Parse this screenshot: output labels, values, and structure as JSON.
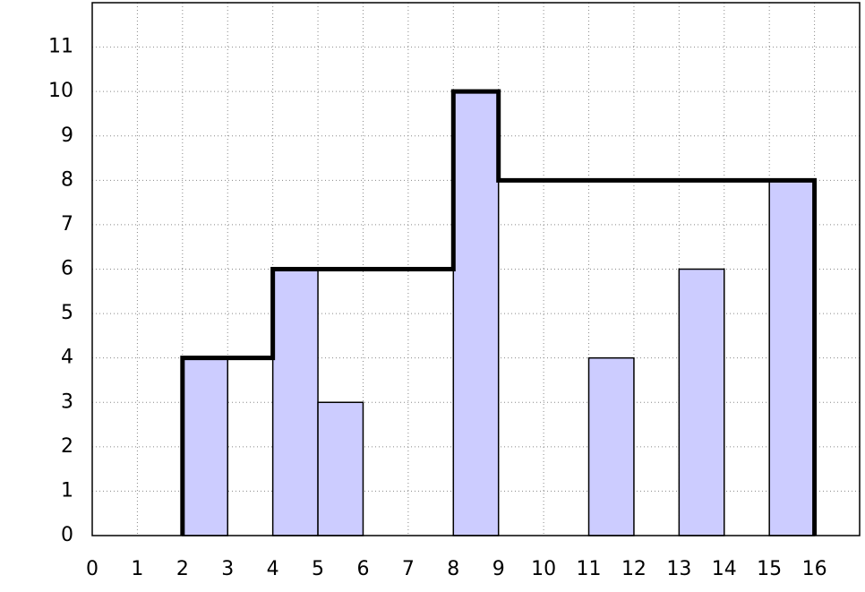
{
  "chart_data": {
    "type": "bar",
    "x_start": [
      2,
      4,
      5,
      8,
      11,
      13,
      15
    ],
    "x_end": [
      3,
      5,
      6,
      9,
      12,
      14,
      16
    ],
    "values": [
      4,
      6,
      3,
      10,
      4,
      6,
      8
    ],
    "color": "#ccccff",
    "line": {
      "type": "line",
      "color": "#000000",
      "x": [
        2,
        2,
        4,
        4,
        8,
        8,
        9,
        9,
        16,
        16
      ],
      "y": [
        0,
        4,
        4,
        6,
        6,
        10,
        10,
        8,
        8,
        0
      ]
    },
    "xlim": [
      0,
      17
    ],
    "ylim": [
      0,
      12
    ],
    "xticks": [
      0,
      1,
      2,
      3,
      4,
      5,
      6,
      7,
      8,
      9,
      10,
      11,
      12,
      13,
      14,
      15,
      16
    ],
    "yticks": [
      0,
      1,
      2,
      3,
      4,
      5,
      6,
      7,
      8,
      9,
      10,
      11
    ],
    "grid": true
  }
}
